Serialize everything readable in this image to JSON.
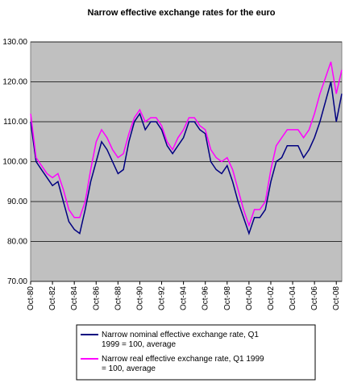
{
  "chart_data": {
    "type": "line",
    "title": "Narrow effective exchange rates for the euro",
    "categories": [
      "Oct-80",
      null,
      null,
      null,
      "Oct-82",
      null,
      null,
      null,
      "Oct-84",
      null,
      null,
      null,
      "Oct-86",
      null,
      null,
      null,
      "Oct-88",
      null,
      null,
      null,
      "Oct-90",
      null,
      null,
      null,
      "Oct-92",
      null,
      null,
      null,
      "Oct-94",
      null,
      null,
      null,
      "Oct-96",
      null,
      null,
      null,
      "Oct-98",
      null,
      null,
      null,
      "Oct-00",
      null,
      null,
      null,
      "Oct-02",
      null,
      null,
      null,
      "Oct-04",
      null,
      null,
      null,
      "Oct-06",
      null,
      null,
      null,
      "Oct-08",
      null
    ],
    "series": [
      {
        "name": "Narrow nominal effective exchange rate, Q1 1999 = 100, average",
        "color": "#000080",
        "values": [
          110,
          100,
          98,
          96,
          94,
          95,
          90,
          85,
          83,
          82,
          88,
          95,
          100,
          105,
          103,
          100,
          97,
          98,
          105,
          110,
          112,
          108,
          110,
          110,
          108,
          104,
          102,
          104,
          106,
          110,
          110,
          108,
          107,
          100,
          98,
          97,
          99,
          95,
          90,
          86,
          82,
          86,
          86,
          88,
          95,
          100,
          101,
          104,
          104,
          104,
          101,
          103,
          106,
          110,
          115,
          120,
          110,
          117
        ]
      },
      {
        "name": "Narrow real effective exchange rate, Q1 1999 = 100, average",
        "color": "#ff00ff",
        "values": [
          112,
          101,
          99,
          97,
          96,
          97,
          93,
          88,
          86,
          86,
          90,
          98,
          105,
          108,
          106,
          103,
          101,
          102,
          107,
          111,
          113,
          110,
          111,
          111,
          109,
          105,
          103,
          106,
          108,
          111,
          111,
          109,
          108,
          103,
          101,
          100,
          101,
          98,
          93,
          88,
          84,
          88,
          88,
          90,
          98,
          104,
          106,
          108,
          108,
          108,
          106,
          108,
          112,
          117,
          121,
          125,
          117,
          123
        ]
      }
    ],
    "ylim": [
      70,
      130
    ],
    "yticks": [
      {
        "value": 70,
        "label": "70.00"
      },
      {
        "value": 80,
        "label": "80.00"
      },
      {
        "value": 90,
        "label": "90.00"
      },
      {
        "value": 100,
        "label": "100.00"
      },
      {
        "value": 110,
        "label": "110.00"
      },
      {
        "value": 120,
        "label": "120.00"
      },
      {
        "value": 130,
        "label": "130.00"
      }
    ],
    "grid": true,
    "plot_background": "#c0c0c0"
  }
}
